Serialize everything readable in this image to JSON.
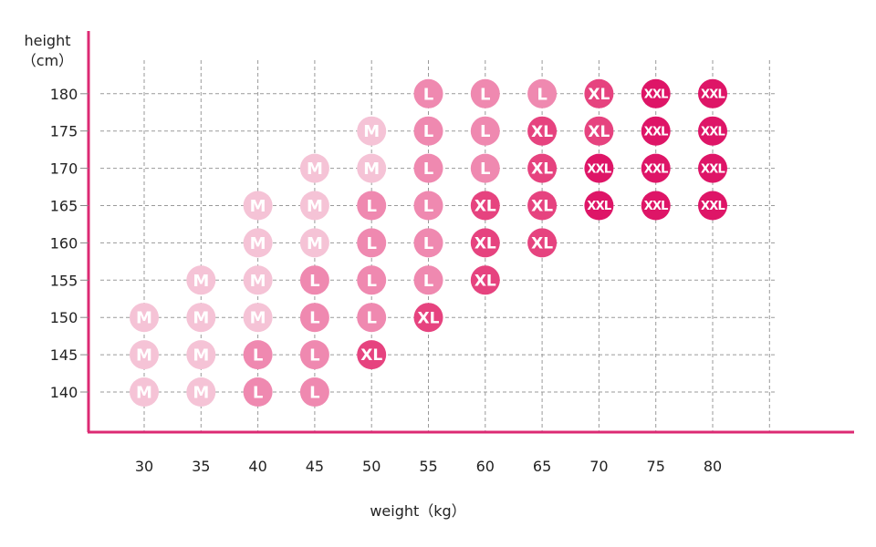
{
  "chart_data": {
    "type": "scatter",
    "title": "",
    "xlabel": "weight（kg）",
    "ylabel_line1": "height",
    "ylabel_line2": "（cm）",
    "x_ticks": [
      30,
      35,
      40,
      45,
      50,
      55,
      60,
      65,
      70,
      75,
      80
    ],
    "y_ticks": [
      140,
      145,
      150,
      155,
      160,
      165,
      170,
      175,
      180
    ],
    "xlim": [
      25,
      85
    ],
    "ylim": [
      135,
      185
    ],
    "grid": true,
    "size_colors": {
      "M": "#f5c3d6",
      "L": "#ef89b0",
      "XL": "#e6437f",
      "XXL": "#de1567"
    },
    "axis_color": "#dc2a73",
    "grid_color": "#9a9a9a",
    "points": [
      {
        "x": 30,
        "y": 140,
        "size": "M"
      },
      {
        "x": 30,
        "y": 145,
        "size": "M"
      },
      {
        "x": 30,
        "y": 150,
        "size": "M"
      },
      {
        "x": 35,
        "y": 140,
        "size": "M"
      },
      {
        "x": 35,
        "y": 145,
        "size": "M"
      },
      {
        "x": 35,
        "y": 150,
        "size": "M"
      },
      {
        "x": 35,
        "y": 155,
        "size": "M"
      },
      {
        "x": 40,
        "y": 140,
        "size": "L"
      },
      {
        "x": 40,
        "y": 145,
        "size": "L"
      },
      {
        "x": 40,
        "y": 150,
        "size": "M"
      },
      {
        "x": 40,
        "y": 155,
        "size": "M"
      },
      {
        "x": 40,
        "y": 160,
        "size": "M"
      },
      {
        "x": 40,
        "y": 165,
        "size": "M"
      },
      {
        "x": 45,
        "y": 140,
        "size": "L"
      },
      {
        "x": 45,
        "y": 145,
        "size": "L"
      },
      {
        "x": 45,
        "y": 150,
        "size": "L"
      },
      {
        "x": 45,
        "y": 155,
        "size": "L"
      },
      {
        "x": 45,
        "y": 160,
        "size": "M"
      },
      {
        "x": 45,
        "y": 165,
        "size": "M"
      },
      {
        "x": 45,
        "y": 170,
        "size": "M"
      },
      {
        "x": 50,
        "y": 145,
        "size": "XL"
      },
      {
        "x": 50,
        "y": 150,
        "size": "L"
      },
      {
        "x": 50,
        "y": 155,
        "size": "L"
      },
      {
        "x": 50,
        "y": 160,
        "size": "L"
      },
      {
        "x": 50,
        "y": 165,
        "size": "L"
      },
      {
        "x": 50,
        "y": 170,
        "size": "M"
      },
      {
        "x": 50,
        "y": 175,
        "size": "M"
      },
      {
        "x": 55,
        "y": 150,
        "size": "XL"
      },
      {
        "x": 55,
        "y": 155,
        "size": "L"
      },
      {
        "x": 55,
        "y": 160,
        "size": "L"
      },
      {
        "x": 55,
        "y": 165,
        "size": "L"
      },
      {
        "x": 55,
        "y": 170,
        "size": "L"
      },
      {
        "x": 55,
        "y": 175,
        "size": "L"
      },
      {
        "x": 55,
        "y": 180,
        "size": "L"
      },
      {
        "x": 60,
        "y": 155,
        "size": "XL"
      },
      {
        "x": 60,
        "y": 160,
        "size": "XL"
      },
      {
        "x": 60,
        "y": 165,
        "size": "XL"
      },
      {
        "x": 60,
        "y": 170,
        "size": "L"
      },
      {
        "x": 60,
        "y": 175,
        "size": "L"
      },
      {
        "x": 60,
        "y": 180,
        "size": "L"
      },
      {
        "x": 65,
        "y": 160,
        "size": "XL"
      },
      {
        "x": 65,
        "y": 165,
        "size": "XL"
      },
      {
        "x": 65,
        "y": 170,
        "size": "XL"
      },
      {
        "x": 65,
        "y": 175,
        "size": "XL"
      },
      {
        "x": 65,
        "y": 180,
        "size": "L"
      },
      {
        "x": 70,
        "y": 165,
        "size": "XXL"
      },
      {
        "x": 70,
        "y": 170,
        "size": "XXL"
      },
      {
        "x": 70,
        "y": 175,
        "size": "XL"
      },
      {
        "x": 70,
        "y": 180,
        "size": "XL"
      },
      {
        "x": 75,
        "y": 165,
        "size": "XXL"
      },
      {
        "x": 75,
        "y": 170,
        "size": "XXL"
      },
      {
        "x": 75,
        "y": 175,
        "size": "XXL"
      },
      {
        "x": 75,
        "y": 180,
        "size": "XXL"
      },
      {
        "x": 80,
        "y": 165,
        "size": "XXL"
      },
      {
        "x": 80,
        "y": 170,
        "size": "XXL"
      },
      {
        "x": 80,
        "y": 175,
        "size": "XXL"
      },
      {
        "x": 80,
        "y": 180,
        "size": "XXL"
      }
    ]
  }
}
